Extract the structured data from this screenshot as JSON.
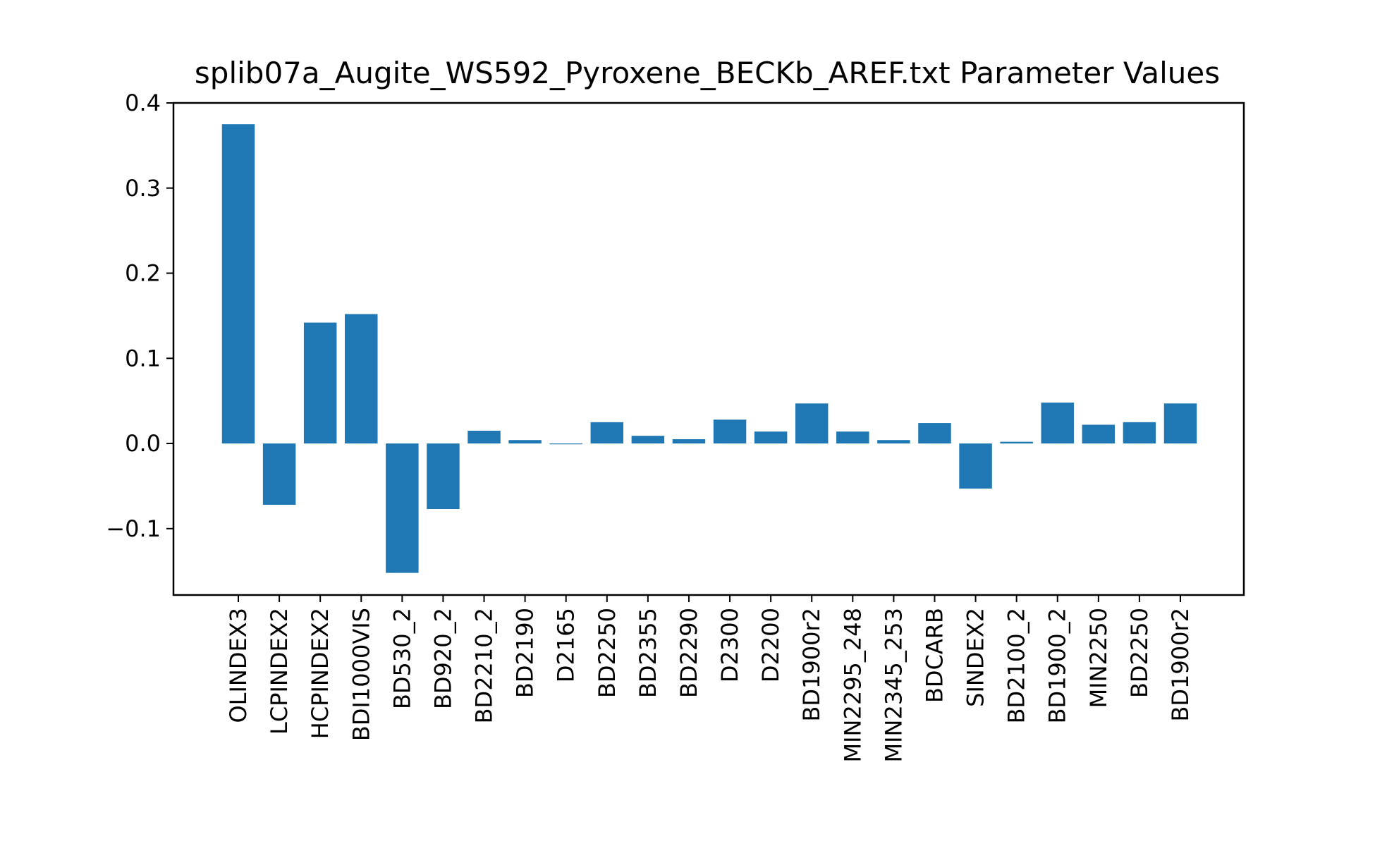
{
  "chart_data": {
    "type": "bar",
    "title": "splib07a_Augite_WS592_Pyroxene_BECKb_AREF.txt Parameter Values",
    "xlabel": "",
    "ylabel": "",
    "ylim": [
      -0.178,
      0.4
    ],
    "yticks": [
      -0.1,
      0.0,
      0.1,
      0.2,
      0.3,
      0.4
    ],
    "ytick_labels": [
      "−0.1",
      "0.0",
      "0.1",
      "0.2",
      "0.3",
      "0.4"
    ],
    "grid": false,
    "bar_color": "#1f77b4",
    "categories": [
      "OLINDEX3",
      "LCPINDEX2",
      "HCPINDEX2",
      "BDI1000VIS",
      "BD530_2",
      "BD920_2",
      "BD2210_2",
      "BD2190",
      "D2165",
      "BD2250",
      "BD2355",
      "BD2290",
      "D2300",
      "D2200",
      "BD1900r2",
      "MIN2295_248",
      "MIN2345_253",
      "BDCARB",
      "SINDEX2",
      "BD2100_2",
      "BD1900_2",
      "MIN2250",
      "BD2250",
      "BD1900r2"
    ],
    "values": [
      0.375,
      -0.072,
      0.142,
      0.152,
      -0.152,
      -0.077,
      0.015,
      0.004,
      -0.001,
      0.025,
      0.009,
      0.005,
      0.028,
      0.014,
      0.047,
      0.014,
      0.004,
      0.024,
      -0.053,
      0.002,
      0.048,
      0.022,
      0.025,
      0.047
    ]
  }
}
